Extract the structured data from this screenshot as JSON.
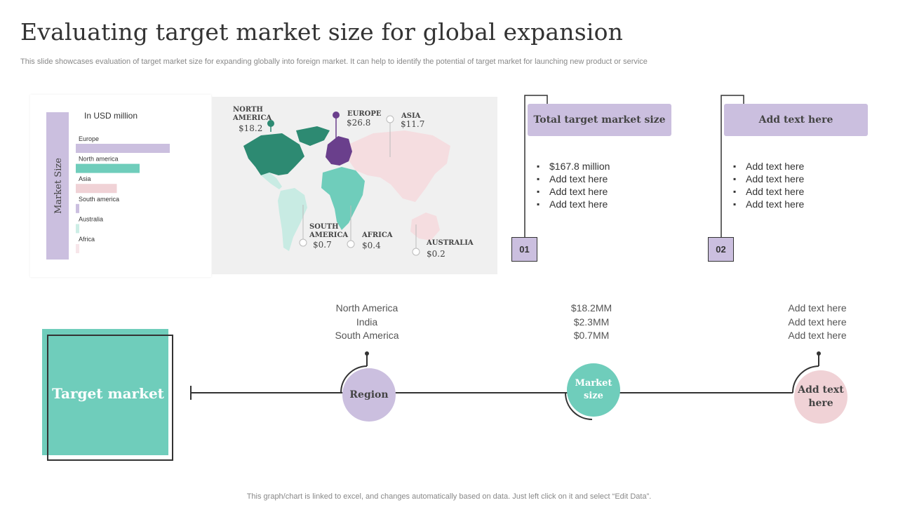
{
  "header": {
    "title": "Evaluating target market size for global expansion",
    "subtitle": "This slide showcases evaluation of target market size for expanding globally into foreign market. It can help to  identify the potential of target market for launching new product or service"
  },
  "chart_data": {
    "type": "bar",
    "title": "In USD million",
    "ylabel": "Market Size",
    "categories": [
      "Europe",
      "North america",
      "Asia",
      "South america",
      "Australia",
      "Africa"
    ],
    "values": [
      26.8,
      18.2,
      11.7,
      0.7,
      0.2,
      0.4
    ],
    "colors": [
      "#cbbfdf",
      "#6fcdbb",
      "#f0d2d6",
      "#cbbfdf",
      "#cdeee6",
      "#f7e6ea"
    ],
    "xlim": [
      0,
      27
    ],
    "orientation": "horizontal"
  },
  "map": {
    "regions": [
      {
        "label": "NORTH\nAMERICA",
        "value": "$18.2"
      },
      {
        "label": "EUROPE",
        "value": "$26.8"
      },
      {
        "label": "ASIA",
        "value": "$11.7"
      },
      {
        "label": "SOUTH\nAMERICA",
        "value": "$0.7"
      },
      {
        "label": "AFRICA",
        "value": "$0.4"
      },
      {
        "label": "AUSTRALIA",
        "value": "$0.2"
      }
    ],
    "colors": {
      "north_america": "#2d8a72",
      "europe": "#6a3f8c",
      "asia": "#f5dde0",
      "south_america": "#c8ebe3",
      "africa": "#6fcdbb",
      "australia": "#f5dde0",
      "greenland": "#2d8a72"
    }
  },
  "cards": [
    {
      "number": "01",
      "heading": "Total target market size",
      "items": [
        "$167.8 million",
        "Add text here",
        "Add text here",
        "Add text here"
      ]
    },
    {
      "number": "02",
      "heading": "Add text here",
      "items": [
        "Add text here",
        "Add text here",
        "Add text here",
        "Add text here"
      ]
    }
  ],
  "timeline": {
    "target_label": "Target market",
    "nodes": [
      {
        "label": "Region",
        "lines": [
          "North America",
          "India",
          "South America"
        ],
        "color": "#cbbfdf"
      },
      {
        "label": "Market size",
        "lines": [
          "$18.2MM",
          "$2.3MM",
          "$0.7MM"
        ],
        "color": "#6fcdbb"
      },
      {
        "label": "Add text here",
        "lines": [
          "Add text here",
          "Add text here",
          "Add text here"
        ],
        "color": "#f0d2d6"
      }
    ]
  },
  "footer": "This graph/chart is linked to excel,  and changes automatically based on data. Just left click on it and select “Edit Data”.",
  "colors": {
    "teal": "#6fcdbb",
    "lavender": "#cbbfdf",
    "pink": "#f0d2d6",
    "dark": "#333333"
  }
}
